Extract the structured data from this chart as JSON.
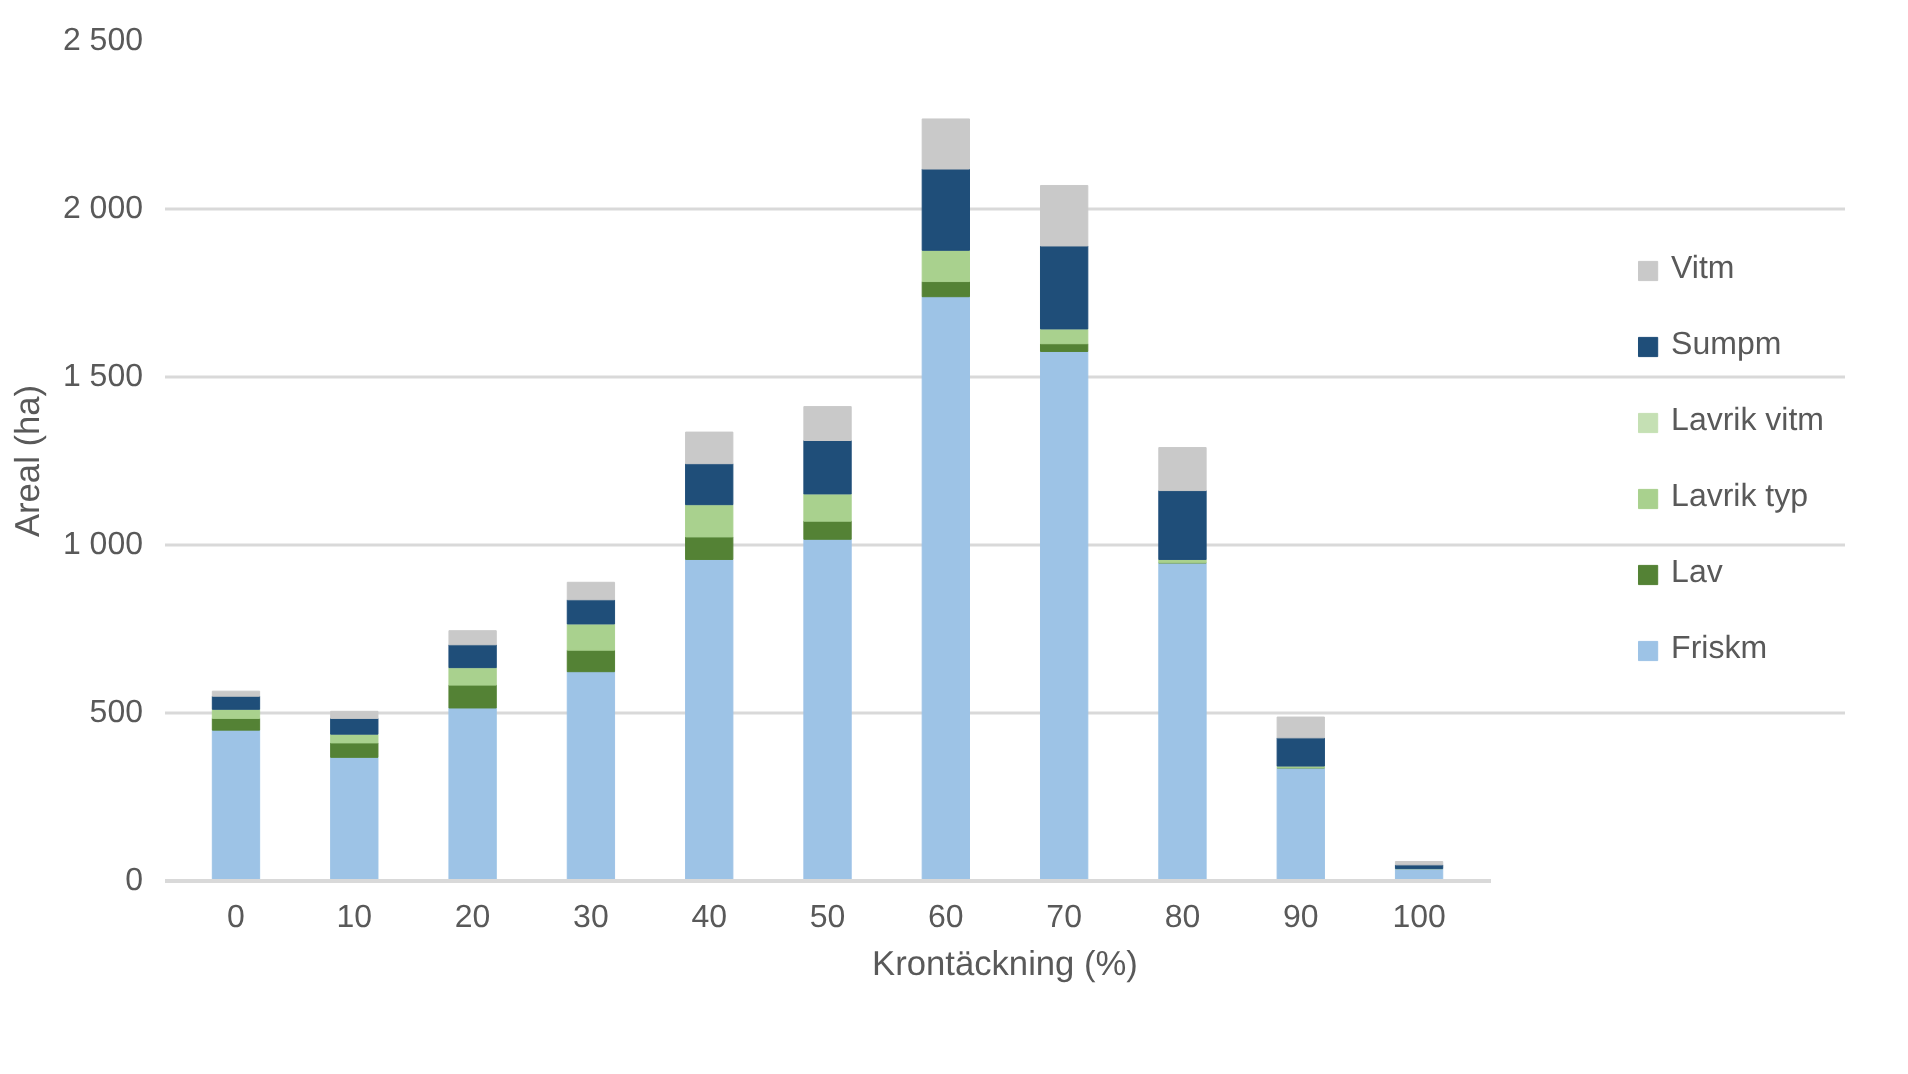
{
  "chart_data": {
    "type": "bar",
    "stacked": true,
    "xlabel": "Krontäckning (%)",
    "ylabel": "Areal (ha)",
    "categories": [
      "0",
      "10",
      "20",
      "30",
      "40",
      "50",
      "60",
      "70",
      "80",
      "90",
      "100"
    ],
    "ylim": [
      0,
      2500
    ],
    "yticks": [
      0,
      500,
      {
        "value": 1000,
        "label": "1 000"
      },
      {
        "value": 1500,
        "label": "1 500"
      },
      {
        "value": 2000,
        "label": "2 000"
      },
      {
        "value": 2500,
        "label": "2 500"
      }
    ],
    "grid": "y",
    "legend": "right",
    "series": [
      {
        "name": "Friskm",
        "color": "#9dc3e6",
        "values": [
          449,
          368,
          515,
          623,
          957,
          1017,
          1739,
          1576,
          947,
          337,
          37
        ]
      },
      {
        "name": "Lav",
        "color": "#548235",
        "values": [
          35,
          43,
          68,
          64,
          67,
          54,
          45,
          23,
          0,
          0,
          0
        ]
      },
      {
        "name": "Lavrik typ",
        "color": "#a9d18e",
        "values": [
          27,
          26,
          52,
          78,
          96,
          81,
          93,
          44,
          10,
          5,
          0
        ]
      },
      {
        "name": "Lavrik vitm",
        "color": "#c5e0b4",
        "values": [
          0,
          0,
          0,
          0,
          0,
          0,
          0,
          0,
          0,
          0,
          0
        ]
      },
      {
        "name": "Sumpm",
        "color": "#1f4e79",
        "values": [
          39,
          47,
          68,
          72,
          122,
          159,
          242,
          247,
          205,
          84,
          11
        ]
      },
      {
        "name": "Vitm",
        "color": "#c9c9c9",
        "values": [
          15,
          21,
          42,
          52,
          94,
          101,
          149,
          180,
          128,
          62,
          10
        ]
      }
    ]
  }
}
